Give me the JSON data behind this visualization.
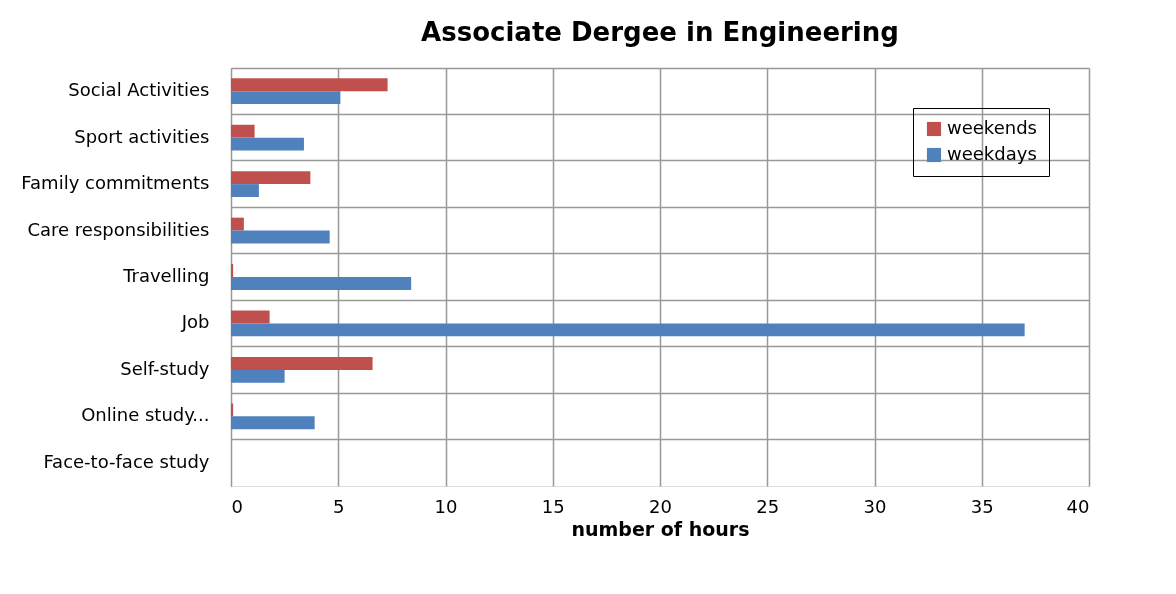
{
  "chart_data": {
    "type": "bar",
    "orientation": "horizontal",
    "title": "Associate Dergee in Engineering",
    "xlabel": "number of hours",
    "categories": [
      "Social Activities",
      "Sport activities",
      "Family commitments",
      "Care responsibilities",
      "Travelling",
      "Job",
      "Self-study",
      "Online study...",
      "Face-to-face study"
    ],
    "series": [
      {
        "name": "weekends",
        "color": "#c0504d",
        "values": [
          7.3,
          1.1,
          3.7,
          0.6,
          0.1,
          1.8,
          6.6,
          0.1,
          0
        ]
      },
      {
        "name": "weekdays",
        "color": "#4f81bd",
        "values": [
          5.1,
          3.4,
          1.3,
          4.6,
          8.4,
          37.0,
          2.5,
          3.9,
          0
        ]
      }
    ],
    "xlim": [
      0,
      40
    ],
    "xticks": [
      0,
      5,
      10,
      15,
      20,
      25,
      30,
      35,
      40
    ],
    "grid": true,
    "legend": "top right"
  }
}
